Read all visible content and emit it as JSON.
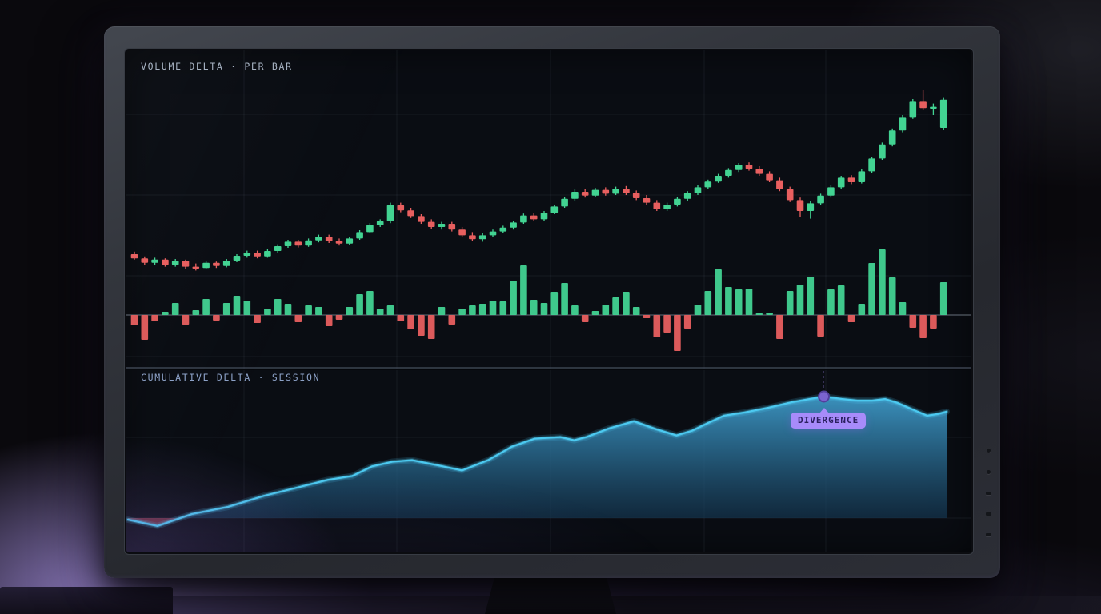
{
  "panels": {
    "volume": {
      "label": "VOLUME DELTA · PER BAR"
    },
    "cumulative": {
      "label": "CUMULATIVE DELTA · SESSION"
    }
  },
  "divergence": {
    "label": "DIVERGENCE"
  },
  "colors": {
    "up": "#42d392",
    "down": "#e85f5f",
    "line": "#4cc9f0",
    "area_top": "#3f9ccb",
    "area_mid": "#2b6f96",
    "area_bottom": "#153a56",
    "neg_area": "#c24b63",
    "marker": "#7a63cf",
    "marker_ring": "#52409c",
    "badge_bg": "#a78bfa",
    "badge_text": "#2b2060",
    "grid": "#94a3b8",
    "zero_line": "#7c8694",
    "screen_bg": "#0a0d13"
  },
  "chart_data": [
    {
      "type": "candlestick",
      "title": "VOLUME DELTA · PER BAR",
      "legend": false,
      "grid": true,
      "price_ylim": [
        25,
        95
      ],
      "candles_ohlc": [
        [
          35.5,
          36.3,
          33.8,
          34.2
        ],
        [
          34.2,
          34.8,
          32.2,
          32.8
        ],
        [
          32.8,
          34.4,
          32.2,
          33.8
        ],
        [
          33.8,
          34.2,
          31.6,
          32.2
        ],
        [
          32.2,
          34,
          31.6,
          33.4
        ],
        [
          33.4,
          33.8,
          30.8,
          31.6
        ],
        [
          31.6,
          32.6,
          30.4,
          31.2
        ],
        [
          31.2,
          33.4,
          30.8,
          32.8
        ],
        [
          32.8,
          33.2,
          31.2,
          31.8
        ],
        [
          31.8,
          34,
          31.4,
          33.5
        ],
        [
          33.5,
          35.5,
          33,
          35
        ],
        [
          35,
          36.6,
          34.4,
          36
        ],
        [
          36,
          36.6,
          34.2,
          34.8
        ],
        [
          34.8,
          37,
          34.4,
          36.5
        ],
        [
          36.5,
          38.6,
          36,
          38
        ],
        [
          38,
          40,
          37.5,
          39.4
        ],
        [
          39.4,
          40,
          37.6,
          38.2
        ],
        [
          38.2,
          40.4,
          37.8,
          39.8
        ],
        [
          39.8,
          41.6,
          39.2,
          41
        ],
        [
          41,
          41.6,
          39,
          39.6
        ],
        [
          39.6,
          40.4,
          38.2,
          38.8
        ],
        [
          38.8,
          41,
          38.4,
          40.4
        ],
        [
          40.4,
          43,
          40,
          42.4
        ],
        [
          42.4,
          45.2,
          42,
          44.6
        ],
        [
          44.6,
          46.4,
          44,
          45.8
        ],
        [
          45.8,
          51.6,
          45.2,
          50.8
        ],
        [
          50.8,
          51.6,
          48.6,
          49.2
        ],
        [
          49.2,
          50,
          46.8,
          47.4
        ],
        [
          47.4,
          48,
          45,
          45.6
        ],
        [
          45.6,
          46.4,
          43.4,
          44
        ],
        [
          44,
          45.6,
          43.2,
          45
        ],
        [
          45,
          45.6,
          42.6,
          43.2
        ],
        [
          43.2,
          44,
          40.8,
          41.4
        ],
        [
          41.4,
          42.4,
          39.6,
          40.2
        ],
        [
          40.2,
          42,
          39.4,
          41.4
        ],
        [
          41.4,
          43.2,
          40.8,
          42.6
        ],
        [
          42.6,
          44.4,
          42,
          43.8
        ],
        [
          43.8,
          46,
          43.2,
          45.4
        ],
        [
          45.4,
          48.2,
          45,
          47.6
        ],
        [
          47.6,
          48.4,
          45.8,
          46.4
        ],
        [
          46.4,
          49,
          46,
          48.4
        ],
        [
          48.4,
          51,
          48,
          50.4
        ],
        [
          50.4,
          53.4,
          50,
          52.8
        ],
        [
          52.8,
          55.8,
          52.2,
          55
        ],
        [
          55,
          55.8,
          53.2,
          53.8
        ],
        [
          53.8,
          56.2,
          53.4,
          55.6
        ],
        [
          55.6,
          56.4,
          53.8,
          54.4
        ],
        [
          54.4,
          56.6,
          54,
          56
        ],
        [
          56,
          56.8,
          54,
          54.6
        ],
        [
          54.6,
          55.4,
          52.4,
          53
        ],
        [
          53,
          54,
          51,
          51.6
        ],
        [
          51.6,
          52.4,
          49,
          49.6
        ],
        [
          49.6,
          51.6,
          49,
          51
        ],
        [
          51,
          53.4,
          50.4,
          52.8
        ],
        [
          52.8,
          55.2,
          52.2,
          54.6
        ],
        [
          54.6,
          57,
          54,
          56.4
        ],
        [
          56.4,
          58.8,
          56,
          58.2
        ],
        [
          58.2,
          60.6,
          57.8,
          60
        ],
        [
          60,
          62.4,
          59.4,
          61.8
        ],
        [
          61.8,
          64,
          61.2,
          63.4
        ],
        [
          63.4,
          64.2,
          61.6,
          62.2
        ],
        [
          62.2,
          63,
          60,
          60.6
        ],
        [
          60.6,
          61.4,
          58,
          58.6
        ],
        [
          58.6,
          59.4,
          55.2,
          55.8
        ],
        [
          55.8,
          56.6,
          51.8,
          52.4
        ],
        [
          52.4,
          53.2,
          47,
          49
        ],
        [
          49,
          52,
          46.6,
          51.4
        ],
        [
          51.4,
          54.4,
          50.8,
          53.8
        ],
        [
          53.8,
          57,
          53.2,
          56.4
        ],
        [
          56.4,
          60,
          56,
          59.4
        ],
        [
          59.4,
          60.2,
          57.4,
          58
        ],
        [
          58,
          62,
          57.6,
          61.4
        ],
        [
          61.4,
          66,
          61,
          65.4
        ],
        [
          65.4,
          70.4,
          65,
          69.8
        ],
        [
          69.8,
          74.8,
          69.2,
          74.2
        ],
        [
          74.2,
          79,
          73.6,
          78.4
        ],
        [
          78.4,
          84,
          77.8,
          83.4
        ],
        [
          83.4,
          87,
          80.6,
          81.2
        ],
        [
          81.2,
          82.6,
          79,
          81.6
        ],
        [
          75,
          84.6,
          74.4,
          83.8
        ]
      ],
      "delta_series": {
        "name": "volume delta per bar",
        "values": [
          -13,
          -31,
          -8,
          4,
          15,
          -12,
          6,
          20,
          -7,
          15,
          24,
          18,
          -10,
          8,
          20,
          14,
          -9,
          12,
          10,
          -14,
          -6,
          10,
          26,
          30,
          8,
          12,
          -8,
          -18,
          -26,
          -30,
          10,
          -12,
          8,
          12,
          14,
          18,
          17,
          43,
          62,
          19,
          15,
          29,
          40,
          12,
          -9,
          5,
          13,
          22,
          29,
          10,
          -4,
          -28,
          -22,
          -45,
          -17,
          13,
          30,
          57,
          35,
          32,
          33,
          2,
          3,
          -30,
          30,
          38,
          48,
          -27,
          32,
          37,
          -9,
          14,
          65,
          82,
          47,
          16,
          -16,
          -29,
          -17,
          41
        ]
      }
    },
    {
      "type": "area",
      "title": "CUMULATIVE DELTA · SESSION",
      "legend": false,
      "grid": true,
      "baseline": 0,
      "ylim": [
        -10,
        110
      ],
      "x": [
        0,
        0.036,
        0.078,
        0.122,
        0.166,
        0.205,
        0.244,
        0.274,
        0.298,
        0.323,
        0.347,
        0.381,
        0.408,
        0.44,
        0.469,
        0.497,
        0.528,
        0.545,
        0.56,
        0.588,
        0.618,
        0.645,
        0.67,
        0.689,
        0.709,
        0.728,
        0.753,
        0.782,
        0.811,
        0.833,
        0.85,
        0.872,
        0.891,
        0.909,
        0.925,
        0.94,
        0.958,
        0.976,
        0.989,
        1
      ],
      "values": [
        -1.3,
        -6.5,
        3.3,
        9.2,
        18.3,
        24.8,
        31.4,
        34.6,
        42.5,
        46.4,
        47.7,
        43.1,
        39.2,
        47.7,
        58.8,
        65.4,
        66.7,
        64.1,
        66.7,
        73.9,
        79.7,
        73.2,
        68,
        71.9,
        78.4,
        84.3,
        86.9,
        90.8,
        95.4,
        98,
        100,
        98,
        96.7,
        96.7,
        98,
        94.8,
        89.5,
        84.3,
        85.6,
        87.6
      ],
      "annotation": {
        "label": "DIVERGENCE",
        "index": 30
      }
    }
  ]
}
